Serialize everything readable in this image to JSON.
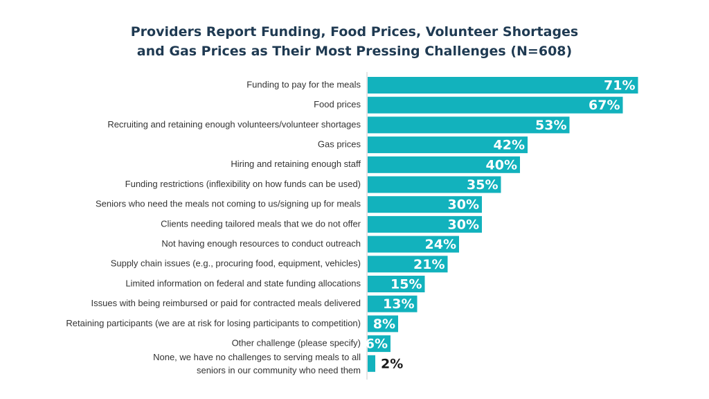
{
  "chart_data": {
    "type": "bar",
    "orientation": "horizontal",
    "title_lines": [
      "Providers Report Funding, Food Prices, Volunteer Shortages",
      "and Gas Prices as Their Most Pressing Challenges (N=608)"
    ],
    "categories": [
      "Funding to pay for the meals",
      "Food prices",
      "Recruiting and retaining enough volunteers/volunteer shortages",
      "Gas prices",
      "Hiring and retaining enough staff",
      "Funding restrictions (inflexibility on how funds can be used)",
      "Seniors who need the meals not coming to us/signing up for meals",
      "Clients needing tailored meals that we do not offer",
      "Not having enough resources to conduct outreach",
      "Supply chain issues (e.g., procuring food, equipment, vehicles)",
      "Limited information on federal and state funding allocations",
      "Issues with being reimbursed or paid for contracted meals delivered",
      "Retaining participants (we are at risk for losing participants to competition)",
      "Other challenge (please specify)",
      [
        "None, we have no challenges to serving meals to all",
        "seniors in our community who need them"
      ]
    ],
    "values": [
      71,
      67,
      53,
      42,
      40,
      35,
      30,
      30,
      24,
      21,
      15,
      13,
      8,
      6,
      2
    ],
    "value_labels": [
      "71%",
      "67%",
      "53%",
      "42%",
      "40%",
      "35%",
      "30%",
      "30%",
      "24%",
      "21%",
      "15%",
      "13%",
      "8%",
      "6%",
      "2%"
    ],
    "bar_color": "#12b2bd",
    "label_color_inside": "#ffffff",
    "label_color_outside": "#1a1a1a",
    "title_color": "#1f3a52",
    "grid": false,
    "legend": "none"
  }
}
